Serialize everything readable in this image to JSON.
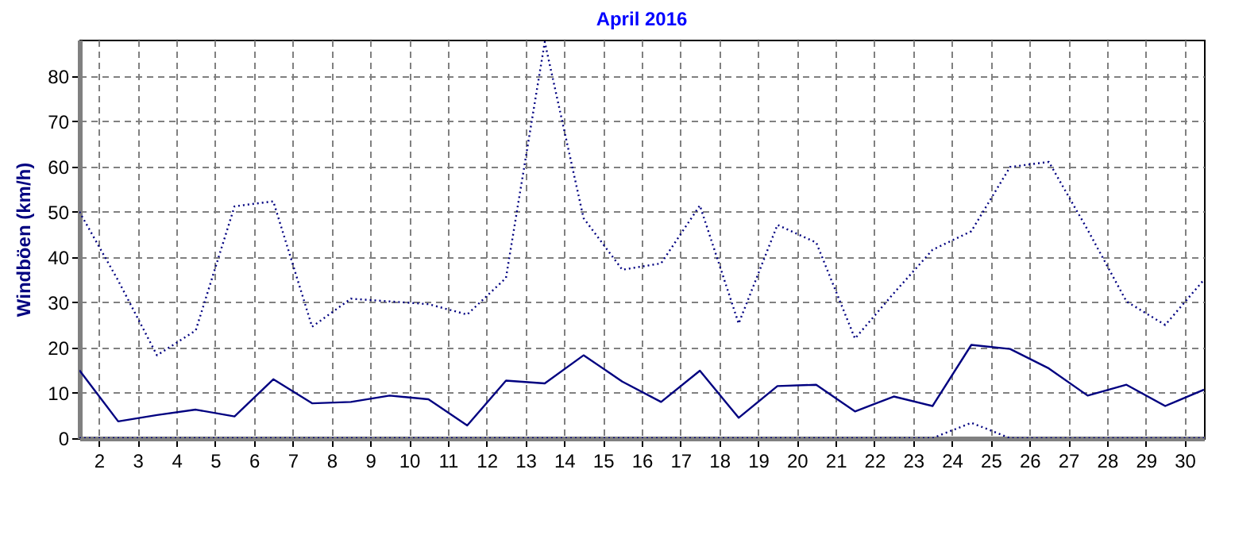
{
  "chart_data": {
    "type": "line",
    "title": "April 2016",
    "ylabel": "Windböen  (km/h)",
    "x": [
      1.5,
      2.5,
      3.5,
      4.5,
      5.5,
      6.5,
      7.5,
      8.5,
      9.5,
      10.5,
      11.5,
      12.5,
      13.5,
      14.5,
      15.5,
      16.5,
      17.5,
      18.5,
      19.5,
      20.5,
      21.5,
      22.5,
      23.5,
      24.5,
      25.5,
      26.5,
      27.5,
      28.5,
      29.5,
      30.5
    ],
    "series": [
      {
        "color": "#000080",
        "line_style": "dotted",
        "values": [
          50,
          34.8,
          18.3,
          23.8,
          51.2,
          52.3,
          24.6,
          30.8,
          30.2,
          29.6,
          27.3,
          35.4,
          87.5,
          48.6,
          37.2,
          38.6,
          51.4,
          25.3,
          47.1,
          43.2,
          22,
          32,
          41.6,
          45.7,
          59.9,
          61,
          46,
          30.2,
          25,
          35
        ]
      },
      {
        "color": "#000080",
        "line_style": "solid",
        "values": [
          15,
          3.7,
          5.1,
          6.3,
          4.8,
          13,
          7.7,
          8,
          9.4,
          8.6,
          2.8,
          12.7,
          12.1,
          18.3,
          12.5,
          8,
          14.9,
          4.5,
          11.5,
          11.8,
          5.9,
          9.2,
          7.1,
          20.6,
          19.7,
          15.4,
          9.4,
          11.8,
          7.1,
          10.7
        ]
      },
      {
        "color": "#000080",
        "line_style": "dotted",
        "values": [
          0,
          0,
          0,
          0,
          0,
          0,
          0,
          0,
          0,
          0,
          0,
          0,
          0,
          0,
          0,
          0,
          0,
          0,
          0,
          0,
          0,
          0,
          0,
          3.4,
          0,
          0,
          0,
          0,
          0,
          0
        ]
      }
    ],
    "xlim": [
      1.5,
      30.5
    ],
    "xticks": [
      2,
      3,
      4,
      5,
      6,
      7,
      8,
      9,
      10,
      11,
      12,
      13,
      14,
      15,
      16,
      17,
      18,
      19,
      20,
      21,
      22,
      23,
      24,
      25,
      26,
      27,
      28,
      29,
      30
    ],
    "ylim": [
      0,
      88
    ],
    "yticks": [
      0,
      10,
      20,
      30,
      40,
      50,
      60,
      70,
      80
    ],
    "grid": true,
    "marker": "none"
  }
}
